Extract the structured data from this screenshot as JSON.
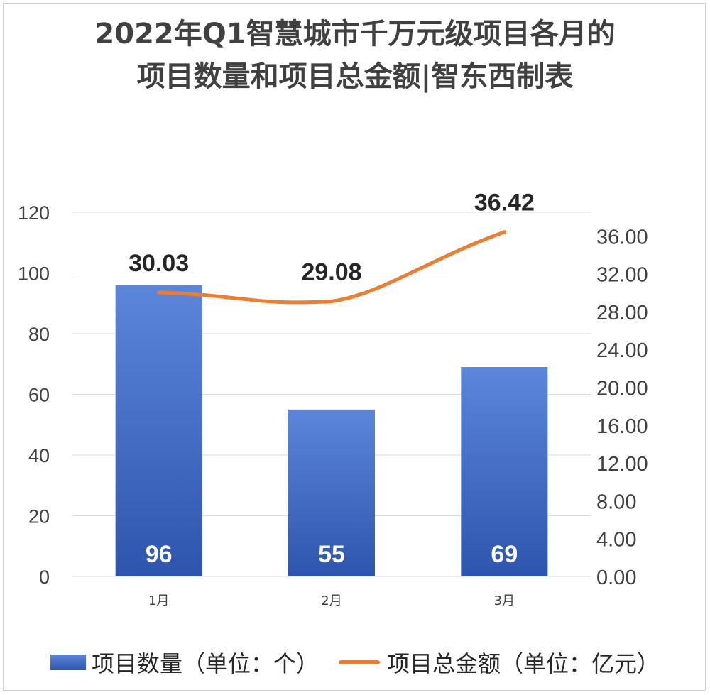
{
  "chart_data": {
    "type": "bar",
    "title_lines": [
      "2022年Q1智慧城市千万元级项目各月的",
      "项目数量和项目总金额|智东西制表"
    ],
    "categories": [
      "1月",
      "2月",
      "3月"
    ],
    "series": [
      {
        "name": "项目数量（单位：个）",
        "type": "bar",
        "axis": "left",
        "values": [
          96,
          55,
          69
        ],
        "labels": [
          "96",
          "55",
          "69"
        ],
        "color": "#4472C4"
      },
      {
        "name": "项目总金额（单位：亿元）",
        "type": "line",
        "axis": "right",
        "values": [
          30.03,
          29.08,
          36.42
        ],
        "labels": [
          "30.03",
          "29.08",
          "36.42"
        ],
        "color": "#ED7D31"
      }
    ],
    "y_left": {
      "ylim": [
        0,
        120
      ],
      "ticks": [
        "0",
        "20",
        "40",
        "60",
        "80",
        "100",
        "120"
      ]
    },
    "y_right": {
      "ylim": [
        0,
        38.5
      ],
      "ticks": [
        "0.00",
        "4.00",
        "8.00",
        "12.00",
        "16.00",
        "20.00",
        "24.00",
        "28.00",
        "32.00",
        "36.00"
      ]
    },
    "grid": true,
    "legend_position": "bottom"
  }
}
